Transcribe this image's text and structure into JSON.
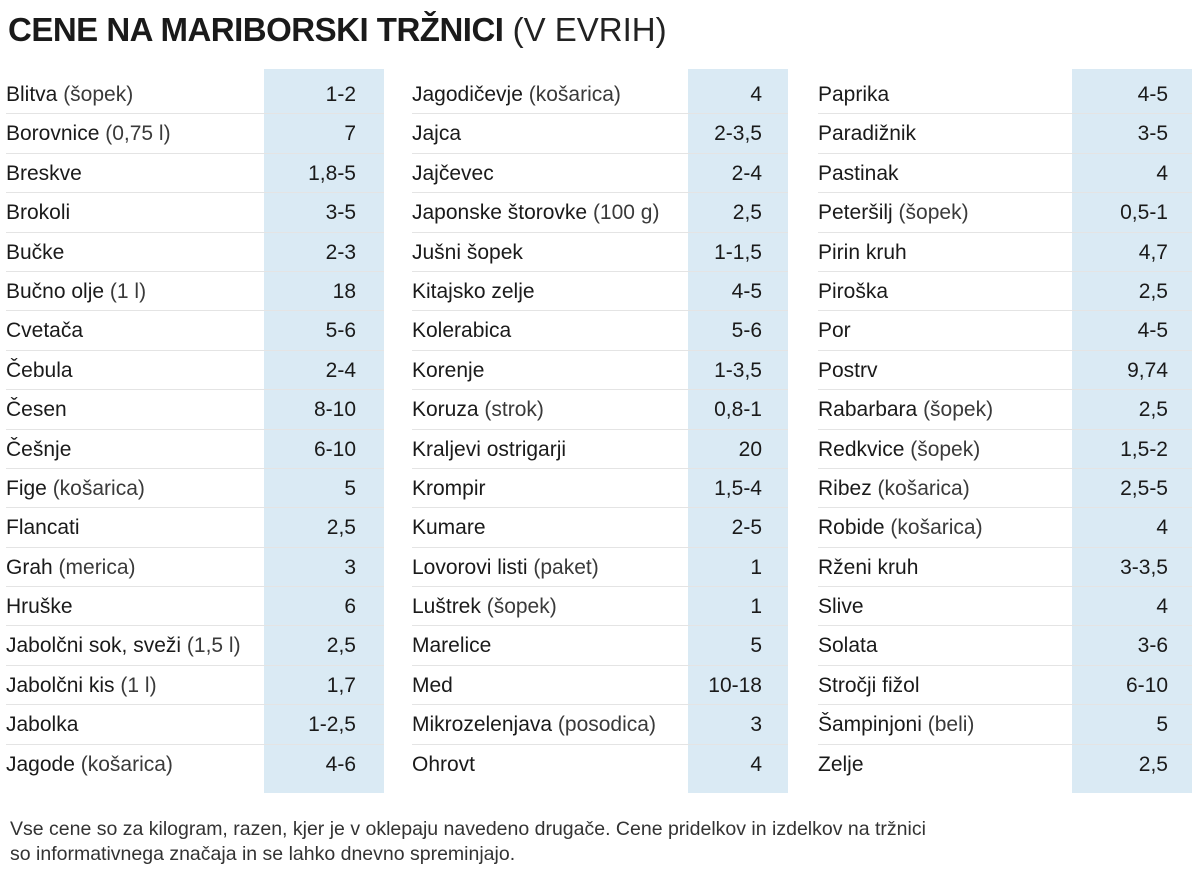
{
  "title": {
    "main": "CENE NA MARIBORSKI TRŽNICI",
    "sub": " (V EVRIH)"
  },
  "columns": [
    {
      "rows": [
        {
          "name": "Blitva",
          "unit": " (šopek)",
          "price": "1-2"
        },
        {
          "name": "Borovnice",
          "unit": " (0,75 l)",
          "price": "7"
        },
        {
          "name": "Breskve",
          "unit": "",
          "price": "1,8-5"
        },
        {
          "name": "Brokoli",
          "unit": "",
          "price": "3-5"
        },
        {
          "name": "Bučke",
          "unit": "",
          "price": "2-3"
        },
        {
          "name": "Bučno olje",
          "unit": " (1 l)",
          "price": "18"
        },
        {
          "name": "Cvetača",
          "unit": "",
          "price": "5-6"
        },
        {
          "name": "Čebula",
          "unit": "",
          "price": "2-4"
        },
        {
          "name": "Česen",
          "unit": "",
          "price": "8-10"
        },
        {
          "name": "Češnje",
          "unit": "",
          "price": "6-10"
        },
        {
          "name": "Fige",
          "unit": " (košarica)",
          "price": "5"
        },
        {
          "name": "Flancati",
          "unit": "",
          "price": "2,5"
        },
        {
          "name": "Grah",
          "unit": " (merica)",
          "price": "3"
        },
        {
          "name": "Hruške",
          "unit": "",
          "price": "6"
        },
        {
          "name": "Jabolčni sok, sveži",
          "unit": "  (1,5 l)",
          "price": "2,5"
        },
        {
          "name": "Jabolčni kis",
          "unit": " (1 l)",
          "price": "1,7"
        },
        {
          "name": "Jabolka",
          "unit": "",
          "price": "1-2,5"
        },
        {
          "name": "Jagode",
          "unit": " (košarica)",
          "price": "4-6"
        }
      ]
    },
    {
      "rows": [
        {
          "name": "Jagodičevje",
          "unit": " (košarica)",
          "price": "4"
        },
        {
          "name": "Jajca",
          "unit": "",
          "price": "2-3,5"
        },
        {
          "name": "Jajčevec",
          "unit": "",
          "price": "2-4"
        },
        {
          "name": "Japonske štorovke",
          "unit": " (100 g)",
          "price": "2,5"
        },
        {
          "name": "Jušni šopek",
          "unit": "",
          "price": "1-1,5"
        },
        {
          "name": "Kitajsko zelje",
          "unit": "",
          "price": "4-5"
        },
        {
          "name": "Kolerabica",
          "unit": "",
          "price": "5-6"
        },
        {
          "name": "Korenje",
          "unit": "",
          "price": "1-3,5"
        },
        {
          "name": "Koruza",
          "unit": " (strok)",
          "price": "0,8-1"
        },
        {
          "name": "Kraljevi ostrigarji",
          "unit": "",
          "price": "20"
        },
        {
          "name": "Krompir",
          "unit": "",
          "price": "1,5-4"
        },
        {
          "name": "Kumare",
          "unit": "",
          "price": "2-5"
        },
        {
          "name": "Lovorovi listi",
          "unit": " (paket)",
          "price": "1"
        },
        {
          "name": "Luštrek",
          "unit": " (šopek)",
          "price": "1"
        },
        {
          "name": "Marelice",
          "unit": "",
          "price": "5"
        },
        {
          "name": "Med",
          "unit": "",
          "price": "10-18"
        },
        {
          "name": "Mikrozelenjava",
          "unit": " (posodica)",
          "price": "3"
        },
        {
          "name": "Ohrovt",
          "unit": "",
          "price": "4"
        }
      ]
    },
    {
      "rows": [
        {
          "name": "Paprika",
          "unit": "",
          "price": "4-5"
        },
        {
          "name": "Paradižnik",
          "unit": "",
          "price": "3-5"
        },
        {
          "name": "Pastinak",
          "unit": "",
          "price": "4"
        },
        {
          "name": "Peteršilj",
          "unit": " (šopek)",
          "price": "0,5-1"
        },
        {
          "name": "Pirin kruh",
          "unit": "",
          "price": "4,7"
        },
        {
          "name": "Piroška",
          "unit": "",
          "price": "2,5"
        },
        {
          "name": "Por",
          "unit": "",
          "price": "4-5"
        },
        {
          "name": "Postrv",
          "unit": "",
          "price": "9,74"
        },
        {
          "name": "Rabarbara",
          "unit": " (šopek)",
          "price": "2,5"
        },
        {
          "name": "Redkvice",
          "unit": " (šopek)",
          "price": "1,5-2"
        },
        {
          "name": "Ribez",
          "unit": " (košarica)",
          "price": "2,5-5"
        },
        {
          "name": "Robide",
          "unit": " (košarica)",
          "price": "4"
        },
        {
          "name": "Rženi kruh",
          "unit": "",
          "price": "3-3,5"
        },
        {
          "name": "Slive",
          "unit": "",
          "price": "4"
        },
        {
          "name": "Solata",
          "unit": "",
          "price": "3-6"
        },
        {
          "name": "Stročji fižol",
          "unit": "",
          "price": "6-10"
        },
        {
          "name": "Šampinjoni",
          "unit": " (beli)",
          "price": "5"
        },
        {
          "name": "Zelje",
          "unit": "",
          "price": "2,5"
        }
      ]
    }
  ],
  "footnote": {
    "line1": "Vse cene so za kilogram, razen, kjer je v oklepaju navedeno drugače. Cene pridelkov in izdelkov na tržnici",
    "line2": "so informativnega značaja in se lahko dnevno spreminjajo."
  },
  "colors": {
    "price_band": "#daeaf4",
    "text": "#1a1a1a"
  }
}
